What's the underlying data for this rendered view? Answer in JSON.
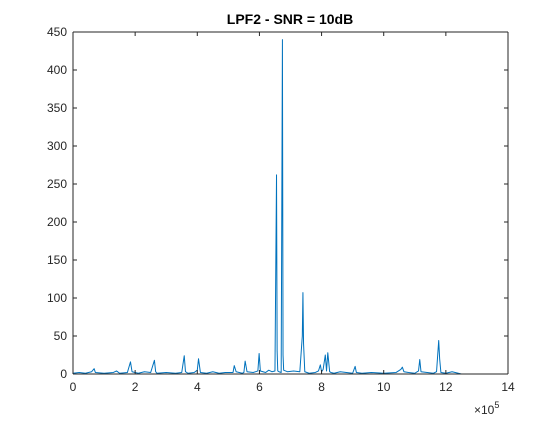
{
  "chart_data": {
    "type": "line",
    "title": "LPF2 - SNR = 10dB",
    "xlabel": "",
    "ylabel": "",
    "x_exponent_label": "×10",
    "x_exponent_power": "5",
    "xlim": [
      0,
      1400000
    ],
    "ylim": [
      0,
      450
    ],
    "x_ticks": [
      0,
      200000,
      400000,
      600000,
      800000,
      1000000,
      1200000,
      1400000
    ],
    "x_tick_labels": [
      "0",
      "2",
      "4",
      "6",
      "8",
      "10",
      "12",
      "14"
    ],
    "y_ticks": [
      0,
      50,
      100,
      150,
      200,
      250,
      300,
      350,
      400,
      450
    ],
    "y_tick_labels": [
      "0",
      "50",
      "100",
      "150",
      "200",
      "250",
      "300",
      "350",
      "400",
      "450"
    ],
    "grid": false,
    "series": [
      {
        "color": "#0072BD",
        "x": [
          0,
          20000,
          40000,
          60000,
          68000,
          72000,
          100000,
          130000,
          140000,
          150000,
          175000,
          185000,
          190000,
          200000,
          210000,
          230000,
          250000,
          262000,
          266000,
          270000,
          300000,
          330000,
          350000,
          358000,
          362000,
          370000,
          390000,
          400000,
          404000,
          410000,
          430000,
          450000,
          470000,
          490000,
          515000,
          519000,
          525000,
          545000,
          550000,
          554000,
          560000,
          580000,
          595000,
          599000,
          603000,
          620000,
          630000,
          640000,
          650000,
          655000,
          657000,
          659000,
          663000,
          670000,
          674000,
          676000,
          678000,
          690000,
          710000,
          730000,
          738000,
          740000,
          742000,
          746000,
          760000,
          780000,
          790000,
          796000,
          800000,
          805000,
          812000,
          816000,
          820000,
          826000,
          830000,
          840000,
          860000,
          880000,
          900000,
          908000,
          912000,
          930000,
          960000,
          1000000,
          1040000,
          1055000,
          1060000,
          1065000,
          1080000,
          1100000,
          1112000,
          1116000,
          1120000,
          1140000,
          1160000,
          1170000,
          1177000,
          1180000,
          1184000,
          1200000,
          1220000,
          1240000,
          1250000
        ],
        "y": [
          1,
          2,
          1,
          3,
          7,
          2,
          1,
          2,
          4,
          1,
          2,
          16,
          3,
          2,
          1,
          3,
          2,
          18,
          3,
          1,
          2,
          1,
          2,
          24,
          3,
          1,
          2,
          5,
          20,
          2,
          1,
          3,
          1,
          2,
          2,
          11,
          3,
          1,
          2,
          17,
          3,
          2,
          4,
          27,
          4,
          2,
          5,
          3,
          4,
          262,
          30,
          4,
          3,
          2,
          440,
          25,
          5,
          3,
          4,
          3,
          50,
          107,
          40,
          3,
          1,
          2,
          4,
          12,
          3,
          6,
          25,
          4,
          28,
          3,
          2,
          1,
          3,
          2,
          1,
          10,
          2,
          1,
          2,
          1,
          2,
          6,
          9,
          3,
          2,
          1,
          4,
          19,
          3,
          2,
          1,
          3,
          44,
          20,
          2,
          1,
          3,
          1,
          0
        ]
      }
    ]
  }
}
